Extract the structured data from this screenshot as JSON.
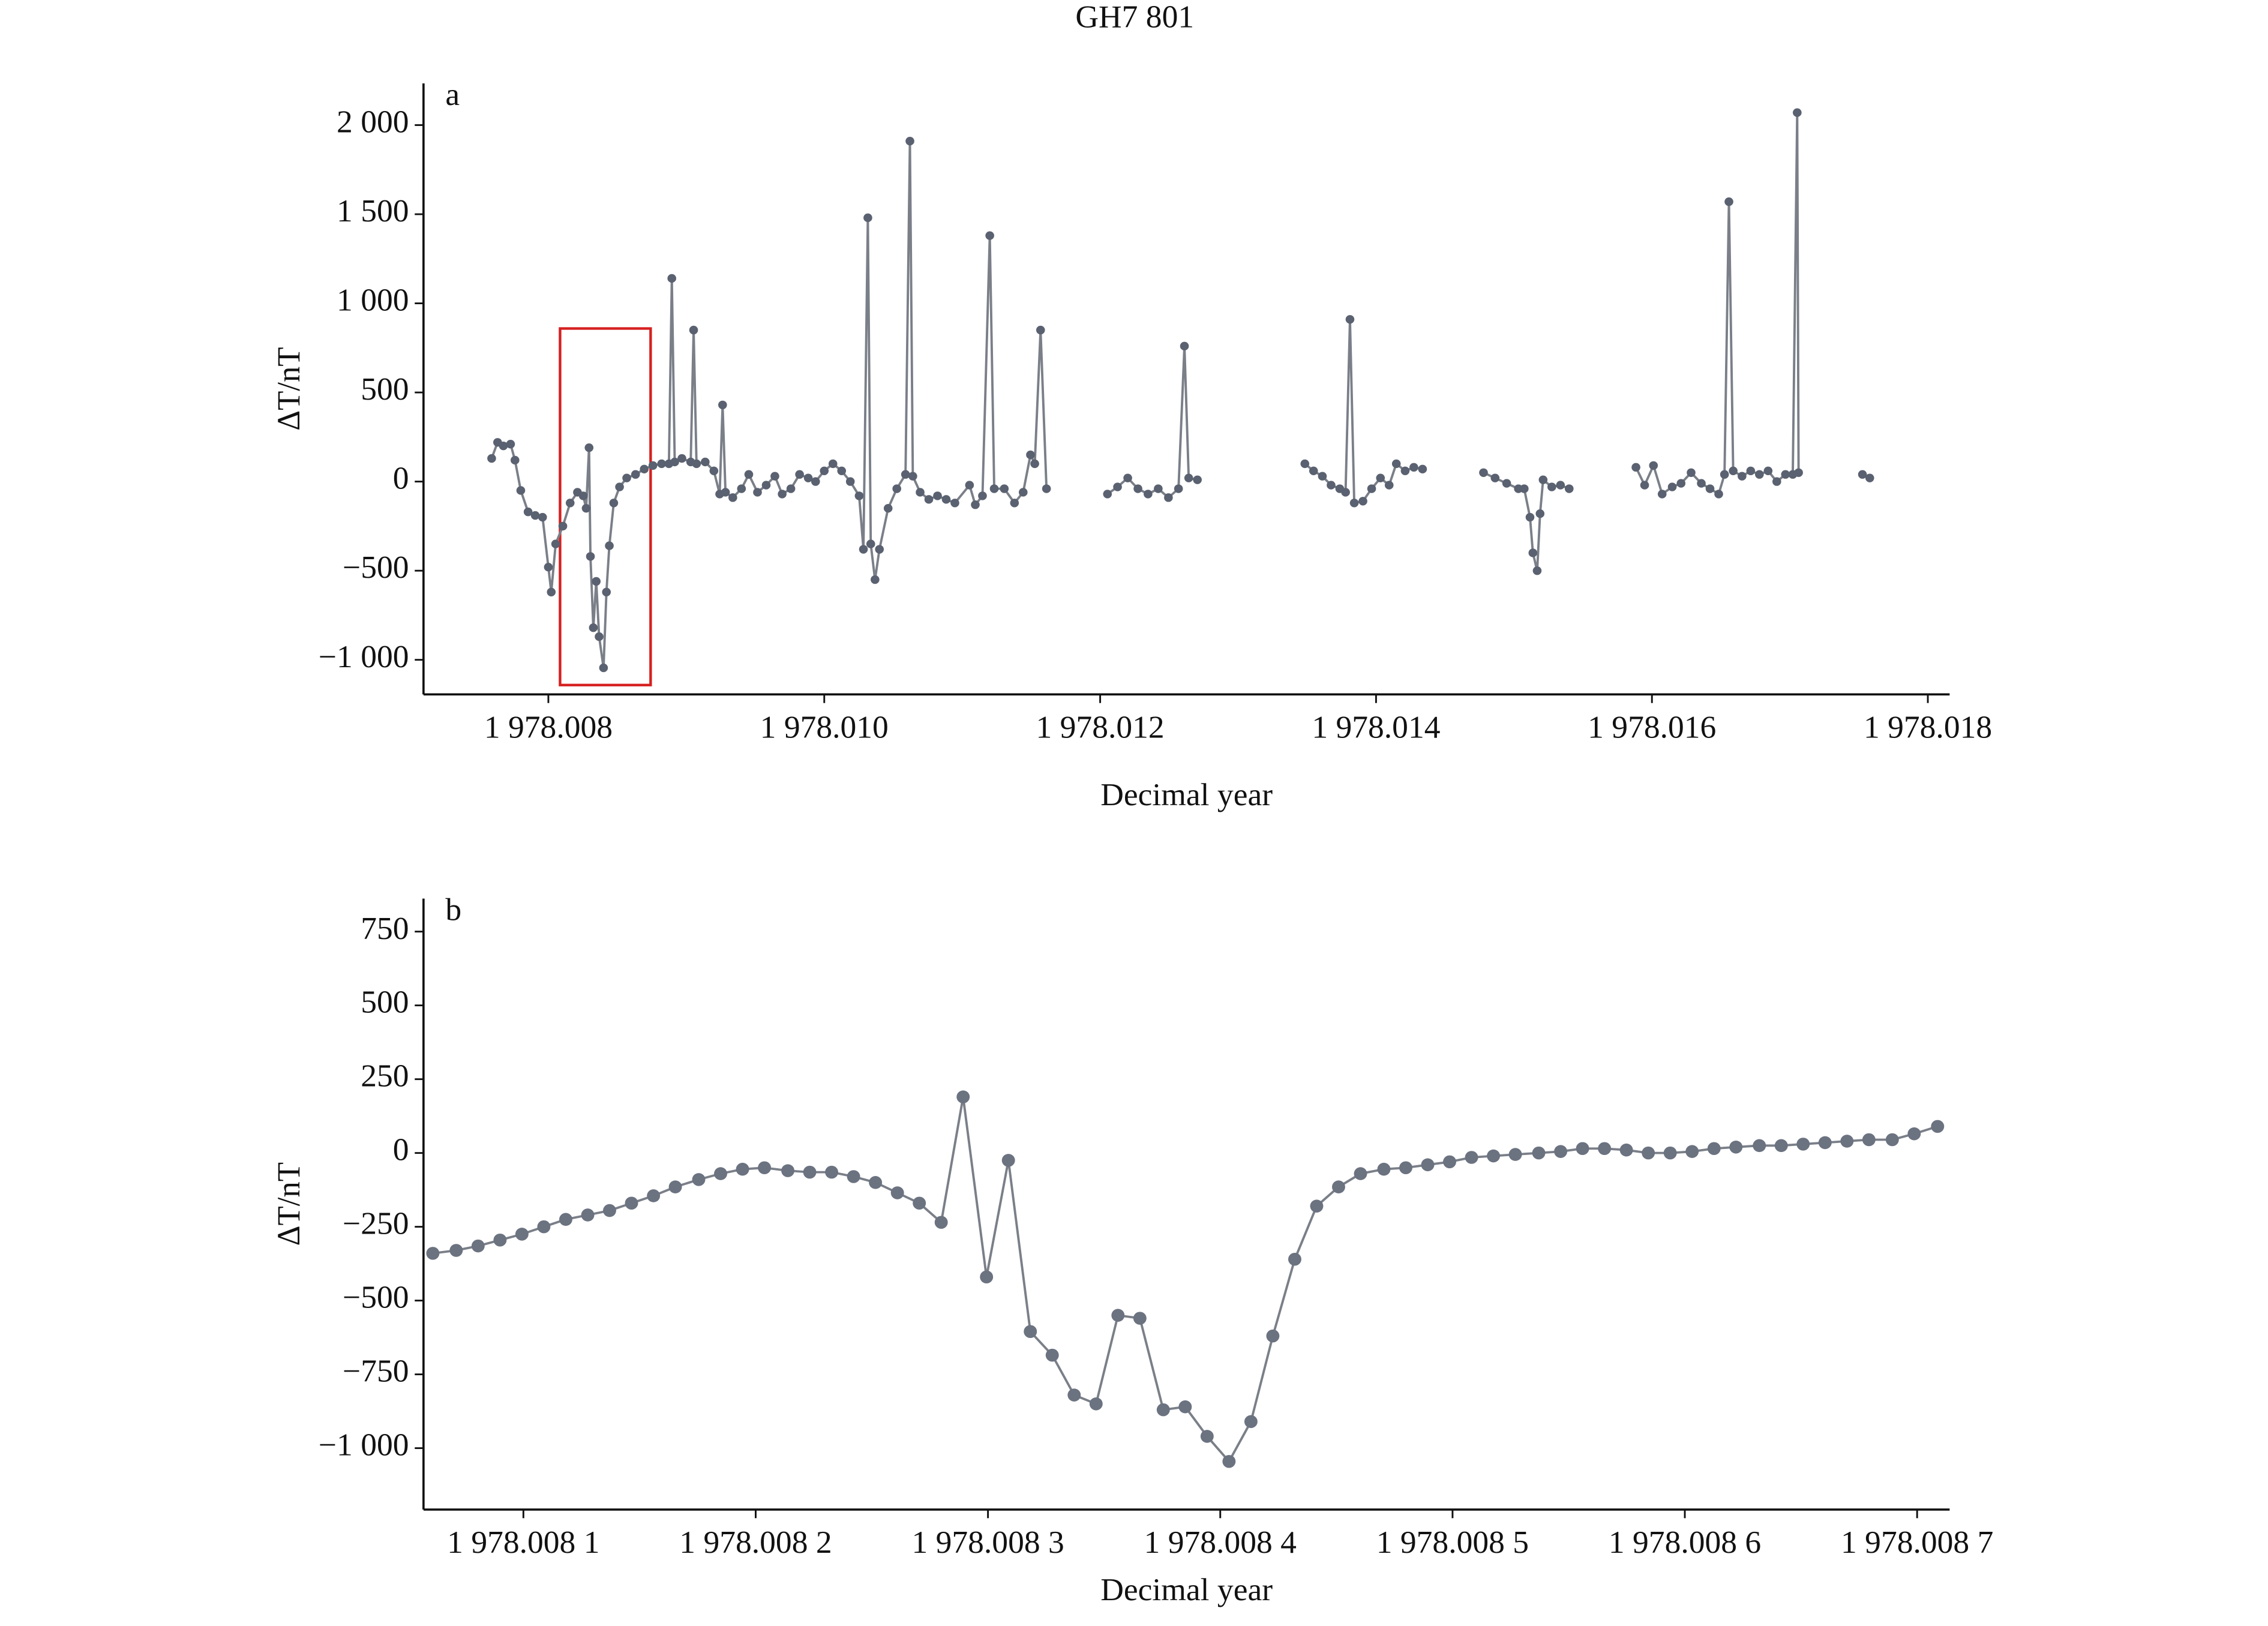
{
  "title": "GH7 801",
  "chart_data": [
    {
      "type": "line",
      "panel_label": "a",
      "xlabel": "Decimal year",
      "ylabel": "ΔT/nT",
      "color": "#5a6170",
      "line_color": "#7a7f88",
      "xlim": [
        1978.007095,
        1978.018158
      ],
      "ylim": [
        -1194,
        2234
      ],
      "xticks": [
        {
          "value": 1978.008,
          "label": "1 978.008"
        },
        {
          "value": 1978.01,
          "label": "1 978.010"
        },
        {
          "value": 1978.012,
          "label": "1 978.012"
        },
        {
          "value": 1978.014,
          "label": "1 978.014"
        },
        {
          "value": 1978.016,
          "label": "1 978.016"
        },
        {
          "value": 1978.018,
          "label": "1 978.018"
        }
      ],
      "yticks": [
        {
          "value": -1000,
          "label": "−1 000"
        },
        {
          "value": -500,
          "label": "−500"
        },
        0,
        500,
        {
          "value": 1000,
          "label": "1 000"
        },
        {
          "value": 1500,
          "label": "1 500"
        },
        {
          "value": 2000,
          "label": "2 000"
        }
      ],
      "x": [
        1978.007589,
        1978.007632,
        1978.007674,
        1978.007726,
        1978.007758,
        1978.0078,
        1978.007853,
        1978.007905,
        1978.007958,
        1978.008,
        1978.008021,
        1978.008053,
        1978.008105,
        1978.008158,
        1978.008211,
        1978.008253,
        1978.008274,
        1978.008295,
        1978.008305,
        1978.008326,
        1978.008347,
        1978.008368,
        1978.0084,
        1978.008421,
        1978.008442,
        1978.008474,
        1978.008516,
        1978.008568,
        1978.008632,
        1978.008695,
        1978.008758,
        1978.008821,
        1978.008874,
        1978.008895,
        1978.008916,
        1978.008968,
        1978.009032,
        1978.009053,
        1978.009074,
        1978.009137,
        1978.0092,
        1978.009242,
        1978.009263,
        1978.009284,
        1978.009337,
        1978.0094,
        1978.009453,
        1978.009516,
        1978.009579,
        1978.009642,
        1978.009695,
        1978.009758,
        1978.009821,
        1978.009884,
        1978.009937,
        1978.01,
        1978.010063,
        1978.010126,
        1978.010189,
        1978.010253,
        1978.010284,
        1978.010316,
        1978.010337,
        1978.010368,
        1978.0104,
        1978.010463,
        1978.010526,
        1978.010589,
        1978.010621,
        1978.010642,
        1978.010695,
        1978.010758,
        1978.010821,
        1978.010884,
        1978.010947,
        1978.011053,
        1978.011095,
        1978.011147,
        1978.0112,
        1978.011232,
        1978.011305,
        1978.011379,
        1978.011442,
        1978.011495,
        1978.011526,
        1978.011568,
        1978.011611,
        null,
        1978.012053,
        1978.012126,
        1978.0122,
        1978.012274,
        1978.012347,
        1978.012421,
        1978.012495,
        1978.012568,
        1978.012611,
        1978.012642,
        1978.012705,
        null,
        1978.013484,
        1978.013547,
        1978.013611,
        1978.013674,
        1978.013737,
        1978.013779,
        1978.013811,
        1978.013842,
        1978.013905,
        1978.013968,
        1978.014032,
        1978.014095,
        1978.014147,
        1978.014211,
        1978.014274,
        1978.014337,
        null,
        1978.014779,
        1978.014863,
        1978.014947,
        1978.015032,
        1978.015074,
        1978.015116,
        1978.015137,
        1978.015168,
        1978.015189,
        1978.015211,
        1978.015274,
        1978.015337,
        1978.0154,
        null,
        1978.015884,
        1978.015947,
        1978.016011,
        1978.016074,
        1978.016147,
        1978.016211,
        1978.016284,
        1978.016358,
        1978.016421,
        1978.016484,
        1978.016526,
        1978.016558,
        1978.016589,
        1978.016653,
        1978.016716,
        1978.016779,
        1978.016842,
        1978.016905,
        1978.016968,
        1978.017021,
        1978.017053,
        1978.017063,
        null,
        1978.017526,
        1978.017579
      ],
      "values": [
        130,
        220,
        200,
        210,
        120,
        -50,
        -170,
        -190,
        -200,
        -480,
        -620,
        -350,
        -250,
        -120,
        -60,
        -80,
        -150,
        190,
        -420,
        -820,
        -560,
        -870,
        -1045,
        -620,
        -360,
        -120,
        -30,
        20,
        40,
        70,
        90,
        100,
        100,
        1140,
        110,
        130,
        110,
        850,
        100,
        110,
        60,
        -70,
        430,
        -60,
        -90,
        -40,
        40,
        -60,
        -20,
        30,
        -70,
        -40,
        40,
        20,
        0,
        60,
        100,
        60,
        0,
        -80,
        -380,
        1480,
        -350,
        -550,
        -380,
        -150,
        -40,
        40,
        1910,
        30,
        -60,
        -100,
        -80,
        -100,
        -120,
        -20,
        -130,
        -80,
        1380,
        -40,
        -40,
        -120,
        -60,
        150,
        100,
        850,
        -40,
        null,
        -70,
        -30,
        20,
        -40,
        -70,
        -40,
        -90,
        -40,
        760,
        20,
        10,
        null,
        100,
        60,
        30,
        -20,
        -40,
        -60,
        910,
        -120,
        -110,
        -40,
        20,
        -20,
        100,
        60,
        80,
        70,
        null,
        50,
        20,
        -10,
        -40,
        -40,
        -200,
        -400,
        -500,
        -180,
        10,
        -30,
        -20,
        -40,
        null,
        80,
        -20,
        90,
        -70,
        -30,
        -10,
        50,
        -10,
        -40,
        -70,
        40,
        1570,
        60,
        30,
        60,
        40,
        60,
        0,
        40,
        40,
        2070,
        50,
        null,
        40,
        20
      ]
    },
    {
      "type": "line",
      "panel_label": "b",
      "xlabel": "Decimal year",
      "ylabel": "ΔT/nT",
      "color": "#6b7280",
      "line_color": "#7a7f88",
      "xlim": [
        1978.008057,
        1978.008714
      ],
      "ylim": [
        -1208,
        862
      ],
      "xticks": [
        {
          "value": 1978.0081,
          "label": "1 978.008 1"
        },
        {
          "value": 1978.0082,
          "label": "1 978.008 2"
        },
        {
          "value": 1978.0083,
          "label": "1 978.008 3"
        },
        {
          "value": 1978.0084,
          "label": "1 978.008 4"
        },
        {
          "value": 1978.0085,
          "label": "1 978.008 5"
        },
        {
          "value": 1978.0086,
          "label": "1 978.008 6"
        },
        {
          "value": 1978.0087,
          "label": "1 978.008 7"
        }
      ],
      "yticks": [
        {
          "value": -1000,
          "label": "−1 000"
        },
        {
          "value": -750,
          "label": "−750"
        },
        {
          "value": -500,
          "label": "−500"
        },
        {
          "value": -250,
          "label": "−250"
        },
        0,
        250,
        500,
        750
      ],
      "x": [
        1978.00806101,
        1978.00807107,
        1978.0080805,
        1978.00808994,
        1978.00809937,
        1978.0081088,
        1978.00811824,
        1978.0081277,
        1978.0081371,
        1978.00814654,
        1978.008156,
        1978.00816541,
        1978.00817547,
        1978.0081849,
        1978.00819434,
        1978.00820377,
        1978.00821384,
        1978.00822327,
        1978.0082327,
        1978.00824214,
        1978.00825157,
        1978.00826101,
        1978.00827044,
        1978.00827987,
        1978.00828931,
        1978.00829937,
        1978.0083088,
        1978.00831824,
        1978.00832767,
        1978.00833711,
        1978.00834654,
        1978.00835597,
        1978.00836541,
        1978.00837547,
        1978.00838491,
        1978.00839434,
        1978.00840377,
        1978.00841321,
        1978.00842264,
        1978.00843208,
        1978.00844151,
        1978.00845094,
        1978.00846038,
        1978.00847044,
        1978.00847987,
        1978.00848931,
        1978.00849874,
        1978.00850818,
        1978.00851761,
        1978.00852704,
        1978.00853711,
        1978.00854654,
        1978.00855597,
        1978.00856541,
        1978.00857484,
        1978.00858428,
        1978.00859371,
        1978.00860314,
        1978.00861258,
        1978.00862201,
        1978.00863208,
        1978.00864151,
        1978.00865094,
        1978.00866038,
        1978.00866981,
        1978.00867925,
        1978.00868931,
        1978.00869874,
        1978.00870881
      ],
      "values": [
        -340,
        -330,
        -315,
        -295,
        -275,
        -250,
        -225,
        -210,
        -195,
        -170,
        -145,
        -115,
        -90,
        -70,
        -55,
        -50,
        -60,
        -65,
        -65,
        -80,
        -100,
        -135,
        -170,
        -235,
        190,
        -420,
        -25,
        -605,
        -685,
        -820,
        -850,
        -550,
        -560,
        -870,
        -860,
        -960,
        -1045,
        -910,
        -620,
        -360,
        -180,
        -115,
        -70,
        -55,
        -50,
        -40,
        -30,
        -15,
        -10,
        -5,
        0,
        5,
        15,
        15,
        10,
        0,
        0,
        5,
        15,
        20,
        25,
        25,
        30,
        35,
        40,
        45,
        45,
        65,
        90
      ]
    }
  ]
}
